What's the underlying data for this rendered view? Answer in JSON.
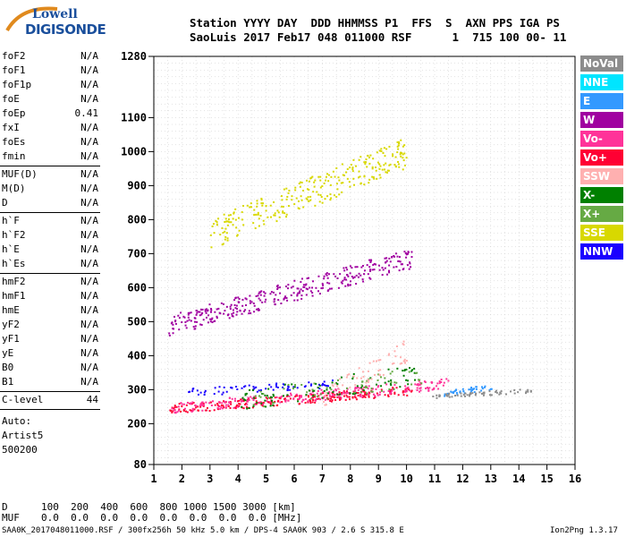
{
  "logo": {
    "line1": "Lowell",
    "line2": "DIGISONDE"
  },
  "header": {
    "line1": "Station YYYY DAY  DDD HHMMSS P1  FFS  S  AXN PPS IGA PS",
    "line2": "SaoLuis 2017 Feb17 048 011000 RSF      1  715 100 00- 11"
  },
  "params": [
    {
      "name": "foF2",
      "value": "N/A"
    },
    {
      "name": "foF1",
      "value": "N/A"
    },
    {
      "name": "foF1p",
      "value": "N/A"
    },
    {
      "name": "foE",
      "value": "N/A"
    },
    {
      "name": "foEp",
      "value": "0.41"
    },
    {
      "name": "fxI",
      "value": "N/A"
    },
    {
      "name": "foEs",
      "value": "N/A"
    },
    {
      "name": "fmin",
      "value": "N/A"
    },
    {
      "name": "MUF(D)",
      "value": "N/A"
    },
    {
      "name": "M(D)",
      "value": "N/A"
    },
    {
      "name": "D",
      "value": "N/A"
    },
    {
      "name": "h`F",
      "value": "N/A"
    },
    {
      "name": "h`F2",
      "value": "N/A"
    },
    {
      "name": "h`E",
      "value": "N/A"
    },
    {
      "name": "h`Es",
      "value": "N/A"
    },
    {
      "name": "hmF2",
      "value": "N/A"
    },
    {
      "name": "hmF1",
      "value": "N/A"
    },
    {
      "name": "hmE",
      "value": "N/A"
    },
    {
      "name": "yF2",
      "value": "N/A"
    },
    {
      "name": "yF1",
      "value": "N/A"
    },
    {
      "name": "yE",
      "value": "N/A"
    },
    {
      "name": "B0",
      "value": "N/A"
    },
    {
      "name": "B1",
      "value": "N/A"
    },
    {
      "name": "C-level",
      "value": "44"
    }
  ],
  "auto": {
    "label": "Auto:",
    "software": "Artist5",
    "version": "500200"
  },
  "legend": [
    {
      "label": "NoVal",
      "color": "#8c8c8c"
    },
    {
      "label": "NNE",
      "color": "#00e5ff"
    },
    {
      "label": "E",
      "color": "#3399ff"
    },
    {
      "label": "W",
      "color": "#a000a0"
    },
    {
      "label": "Vo-",
      "color": "#ff3399"
    },
    {
      "label": "Vo+",
      "color": "#ff0033"
    },
    {
      "label": "SSW",
      "color": "#ffb0b0"
    },
    {
      "label": "X-",
      "color": "#008000"
    },
    {
      "label": "X+",
      "color": "#66aa44"
    },
    {
      "label": "SSE",
      "color": "#d8d800"
    },
    {
      "label": "NNW",
      "color": "#1a00ff"
    }
  ],
  "footer": {
    "d_label": "D",
    "d_values": "100  200  400  600  800 1000 1500 3000 [km]",
    "muf_label": "MUF",
    "muf_values": "0.0  0.0  0.0  0.0  0.0  0.0  0.0  0.0 [MHz]",
    "info": "SAA0K_2017048011000.RSF / 300fx256h 50 kHz 5.0 km / DPS-4 SAA0K 903 / 2.6 S 315.8 E",
    "version": "Ion2Png 1.3.17"
  },
  "chart_data": {
    "type": "scatter",
    "xlim": [
      1,
      16
    ],
    "ylim": [
      80,
      1280
    ],
    "x_ticks": [
      1,
      2,
      3,
      4,
      5,
      6,
      7,
      8,
      9,
      10,
      11,
      12,
      13,
      14,
      15,
      16
    ],
    "y_ticks": [
      80,
      200,
      300,
      400,
      500,
      600,
      700,
      800,
      900,
      1000,
      1100,
      1280
    ],
    "xlabel": "",
    "ylabel": "",
    "grid": true,
    "traces": [
      {
        "name": "Vo+",
        "color": "#ff0033",
        "x_range": [
          1.5,
          10.2
        ],
        "h_start": 245,
        "h_end": 300,
        "spread": 14,
        "n": 260
      },
      {
        "name": "Vo-",
        "color": "#ff3399",
        "x_range": [
          1.6,
          11.5
        ],
        "h_start": 248,
        "h_end": 320,
        "spread": 16,
        "n": 220
      },
      {
        "name": "NNW",
        "color": "#1a00ff",
        "x_range": [
          2.2,
          7.5
        ],
        "h_start": 295,
        "h_end": 320,
        "spread": 12,
        "n": 70
      },
      {
        "name": "X-",
        "color": "#008000",
        "x_range": [
          4.0,
          10.5
        ],
        "h_start": 270,
        "h_end": 350,
        "spread": 30,
        "n": 90
      },
      {
        "name": "X+",
        "color": "#66aa44",
        "x_range": [
          4.0,
          10.5
        ],
        "h_start": 270,
        "h_end": 340,
        "spread": 28,
        "n": 60
      },
      {
        "name": "W",
        "color": "#a000a0",
        "x_range": [
          1.5,
          10.2
        ],
        "h_start": 490,
        "h_end": 690,
        "spread": 30,
        "n": 340
      },
      {
        "name": "SSE",
        "color": "#d8d800",
        "x_range": [
          3.0,
          10.0
        ],
        "h_start": 760,
        "h_end": 1000,
        "spread": 45,
        "n": 280
      },
      {
        "name": "SSW",
        "color": "#ffb0b0",
        "x_range": [
          7.0,
          10.0
        ],
        "h_start": 270,
        "h_end": 420,
        "spread": 35,
        "n": 60
      },
      {
        "name": "E",
        "color": "#3399ff",
        "x_range": [
          11.3,
          13.0
        ],
        "h_start": 290,
        "h_end": 310,
        "spread": 8,
        "n": 40
      },
      {
        "name": "NoVal",
        "color": "#8c8c8c",
        "x_range": [
          10.8,
          14.5
        ],
        "h_start": 282,
        "h_end": 300,
        "spread": 6,
        "n": 60
      }
    ]
  }
}
